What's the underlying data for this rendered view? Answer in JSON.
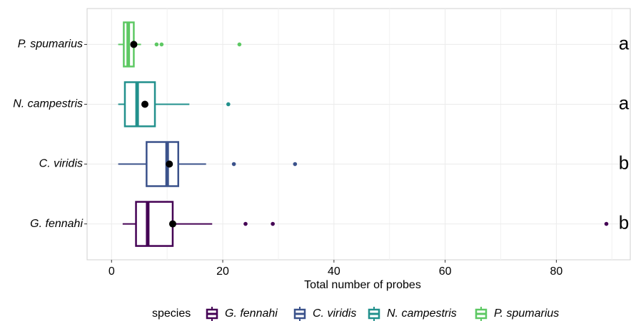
{
  "chart_data": {
    "type": "boxplot",
    "orientation": "horizontal",
    "x_label": "Total number of probes",
    "categories": [
      "G. fennahi",
      "C. viridis",
      "N. campestris",
      "P. spumarius"
    ],
    "legend_title": "species",
    "series": [
      {
        "name": "G. fennahi",
        "color": "#440154",
        "min": 2,
        "q1": 4.4,
        "median": 6.5,
        "q3": 11,
        "max": 18.1,
        "mean": 11,
        "outliers": [
          24.1,
          29,
          89
        ]
      },
      {
        "name": "C. viridis",
        "color": "#3b528b",
        "min": 1.2,
        "q1": 6.3,
        "median": 10,
        "q3": 12,
        "max": 17,
        "mean": 10.4,
        "outliers": [
          22,
          33
        ]
      },
      {
        "name": "N. campestris",
        "color": "#21908c",
        "min": 1.2,
        "q1": 2.4,
        "median": 4.6,
        "q3": 7.8,
        "max": 14,
        "mean": 6,
        "outliers": [
          21
        ]
      },
      {
        "name": "P. spumarius",
        "color": "#5dc863",
        "min": 1.2,
        "q1": 2.2,
        "median": 3,
        "q3": 4,
        "max": 5.3,
        "mean": 4,
        "outliers": [
          8.1,
          9,
          23
        ]
      }
    ],
    "annotations": [
      "b",
      "b",
      "a",
      "a"
    ],
    "xlim": [
      -4.4,
      93.3
    ],
    "xticks": [
      0,
      20,
      40,
      60,
      80
    ],
    "x_minor_ticks": [
      10,
      30,
      50,
      70,
      90
    ],
    "grid": true,
    "legend_position": "bottom",
    "mean_color": "#000000"
  }
}
